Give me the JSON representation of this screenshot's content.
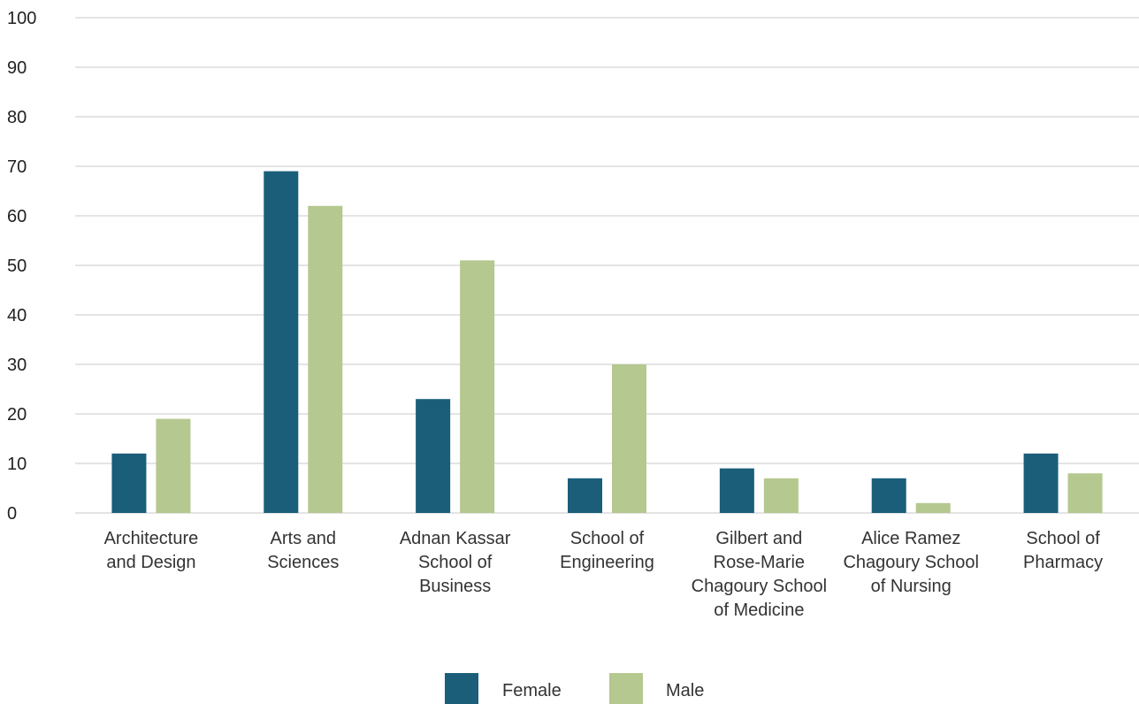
{
  "chart_data": {
    "type": "bar",
    "categories": [
      [
        "Architecture",
        "and Design"
      ],
      [
        "Arts and",
        "Sciences"
      ],
      [
        "Adnan Kassar",
        "School of",
        "Business"
      ],
      [
        "School of",
        "Engineering"
      ],
      [
        "Gilbert and",
        "Rose-Marie",
        "Chagoury School",
        "of Medicine"
      ],
      [
        "Alice Ramez",
        "Chagoury School",
        "of Nursing"
      ],
      [
        "School of",
        "Pharmacy"
      ]
    ],
    "series": [
      {
        "name": "Female",
        "color": "#1a5e7a",
        "values": [
          12,
          69,
          23,
          7,
          9,
          7,
          12
        ]
      },
      {
        "name": "Male",
        "color": "#b5c88f",
        "values": [
          19,
          62,
          51,
          30,
          7,
          2,
          8
        ]
      }
    ],
    "ylim": [
      0,
      100
    ],
    "yticks": [
      0,
      10,
      20,
      30,
      40,
      50,
      60,
      70,
      80,
      90,
      100
    ],
    "grid": true,
    "legend_position": "bottom-center"
  }
}
